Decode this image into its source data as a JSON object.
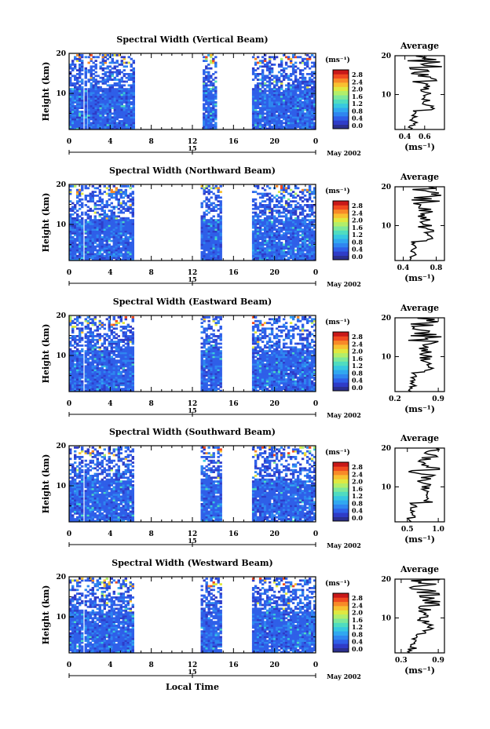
{
  "figure": {
    "xlabel": "Local Time",
    "date_label": "May 2002",
    "day_label": "15",
    "ylabel": "Height (km)",
    "colorbar_unit": "(ms⁻¹)",
    "avg_title": "Average",
    "avg_unit": "(ms⁻¹)"
  },
  "chart_data": [
    {
      "type": "heatmap",
      "title": "Spectral Width (Vertical Beam)",
      "x_ticks": [
        "0",
        "4",
        "8",
        "12",
        "16",
        "20",
        "0"
      ],
      "y_ticks": [
        "10",
        "20"
      ],
      "xlim": [
        0,
        24
      ],
      "ylim": [
        1,
        20
      ],
      "data_intervals_h": [
        [
          0,
          1.2
        ],
        [
          1.5,
          1.7
        ],
        [
          1.8,
          6.2
        ],
        [
          13.0,
          14.2
        ],
        [
          17.8,
          23.8
        ]
      ],
      "colorbar": {
        "min": 0.0,
        "max": 2.8,
        "ticks": [
          "0.0",
          "0.4",
          "0.8",
          "1.2",
          "1.6",
          "2.0",
          "2.4",
          "2.8"
        ]
      },
      "average": {
        "xlim": [
          0.3,
          0.8
        ],
        "x_ticks": [
          "0.4",
          "0.6"
        ],
        "y_ticks": [
          "10",
          "20"
        ]
      }
    },
    {
      "type": "heatmap",
      "title": "Spectral Width (Northward Beam)",
      "x_ticks": [
        "0",
        "4",
        "8",
        "12",
        "16",
        "20",
        "0"
      ],
      "y_ticks": [
        "10",
        "20"
      ],
      "xlim": [
        0,
        24
      ],
      "ylim": [
        1,
        20
      ],
      "data_intervals_h": [
        [
          0,
          1.2
        ],
        [
          1.5,
          6.2
        ],
        [
          12.8,
          14.8
        ],
        [
          17.8,
          23.8
        ]
      ],
      "colorbar": {
        "min": 0.0,
        "max": 2.8,
        "ticks": [
          "0.0",
          "0.4",
          "0.8",
          "1.2",
          "1.6",
          "2.0",
          "2.4",
          "2.8"
        ]
      },
      "average": {
        "xlim": [
          0.3,
          0.9
        ],
        "x_ticks": [
          "0.4",
          "0.8"
        ],
        "y_ticks": [
          "10",
          "20"
        ]
      }
    },
    {
      "type": "heatmap",
      "title": "Spectral Width (Eastward Beam)",
      "x_ticks": [
        "0",
        "4",
        "8",
        "12",
        "16",
        "20",
        "0"
      ],
      "y_ticks": [
        "10",
        "20"
      ],
      "xlim": [
        0,
        24
      ],
      "ylim": [
        1,
        20
      ],
      "data_intervals_h": [
        [
          0,
          1.2
        ],
        [
          1.5,
          6.2
        ],
        [
          12.8,
          14.8
        ],
        [
          17.8,
          23.8
        ]
      ],
      "colorbar": {
        "min": 0.0,
        "max": 2.8,
        "ticks": [
          "0.0",
          "0.4",
          "0.8",
          "1.2",
          "1.6",
          "2.0",
          "2.4",
          "2.8"
        ]
      },
      "average": {
        "xlim": [
          0.2,
          1.0
        ],
        "x_ticks": [
          "0.2",
          "0.9"
        ],
        "y_ticks": [
          "10",
          "20"
        ]
      }
    },
    {
      "type": "heatmap",
      "title": "Spectral Width (Southward Beam)",
      "x_ticks": [
        "0",
        "4",
        "8",
        "12",
        "16",
        "20",
        "0"
      ],
      "y_ticks": [
        "10",
        "20"
      ],
      "xlim": [
        0,
        24
      ],
      "ylim": [
        1,
        20
      ],
      "data_intervals_h": [
        [
          0,
          1.2
        ],
        [
          1.5,
          6.2
        ],
        [
          12.8,
          14.8
        ],
        [
          17.8,
          23.8
        ]
      ],
      "colorbar": {
        "min": 0.0,
        "max": 2.8,
        "ticks": [
          "0.0",
          "0.4",
          "0.8",
          "1.2",
          "1.6",
          "2.0",
          "2.4",
          "2.8"
        ]
      },
      "average": {
        "xlim": [
          0.3,
          1.1
        ],
        "x_ticks": [
          "0.5",
          "1.0"
        ],
        "y_ticks": [
          "10",
          "20"
        ]
      }
    },
    {
      "type": "heatmap",
      "title": "Spectral Width (Westward Beam)",
      "x_ticks": [
        "0",
        "4",
        "8",
        "12",
        "16",
        "20",
        "0"
      ],
      "y_ticks": [
        "10",
        "20"
      ],
      "xlim": [
        0,
        24
      ],
      "ylim": [
        1,
        20
      ],
      "data_intervals_h": [
        [
          0,
          1.2
        ],
        [
          1.5,
          6.2
        ],
        [
          12.8,
          14.8
        ],
        [
          17.8,
          23.8
        ]
      ],
      "colorbar": {
        "min": 0.0,
        "max": 2.8,
        "ticks": [
          "0.0",
          "0.4",
          "0.8",
          "1.2",
          "1.6",
          "2.0",
          "2.4",
          "2.8"
        ]
      },
      "average": {
        "xlim": [
          0.2,
          1.0
        ],
        "x_ticks": [
          "0.3",
          "0.9"
        ],
        "y_ticks": [
          "10",
          "20"
        ]
      }
    }
  ],
  "colors": {
    "colormap": [
      "#2b2f8f",
      "#2f3cc8",
      "#2f5fe8",
      "#2f86f0",
      "#30a8f0",
      "#37c8e0",
      "#4fdcc0",
      "#7ee89a",
      "#b2ee6a",
      "#e0e840",
      "#f8c030",
      "#f88a28",
      "#f04a20",
      "#c81818"
    ]
  }
}
